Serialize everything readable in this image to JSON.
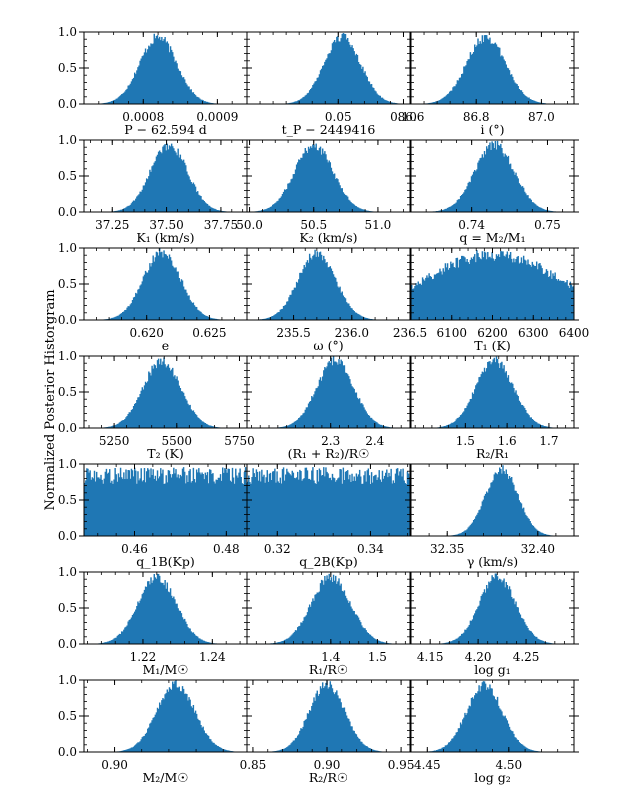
{
  "figure": {
    "ylabel": "Normalized Posterior Historgram",
    "bar_color": "#1f77b4",
    "rows": 7,
    "cols": 3
  },
  "chart_data": [
    {
      "type": "bar",
      "shape": "gaussian",
      "xlabel": "P − 62.594 d",
      "xlim": [
        0.00072,
        0.00094
      ],
      "center": 0.00082,
      "sigma": 2.5e-05,
      "xticks": [
        0.0008,
        0.0009
      ],
      "xtick_labels": [
        "0.0008",
        "0.0009"
      ],
      "yticks": [
        0.0,
        0.5,
        1.0
      ],
      "ytick_labels": [
        "0.0",
        "0.5",
        "1.0"
      ],
      "ylim": [
        0,
        1
      ]
    },
    {
      "type": "bar",
      "shape": "gaussian",
      "xlabel": "t_P − 2449416",
      "xlim": [
        -0.02,
        0.105
      ],
      "center": 0.053,
      "sigma": 0.014,
      "xticks": [
        0.05,
        0.1
      ],
      "xtick_labels": [
        "0.05",
        "0.10"
      ],
      "yticks": [
        0.0,
        0.5,
        1.0
      ],
      "ytick_labels": [
        "",
        "",
        ""
      ],
      "ylim": [
        0,
        1
      ]
    },
    {
      "type": "bar",
      "shape": "gaussian",
      "xlabel": "i (°)",
      "xlim": [
        86.6,
        87.1
      ],
      "center": 86.83,
      "sigma": 0.06,
      "xticks": [
        86.6,
        86.8,
        87.0
      ],
      "xtick_labels": [
        "86.6",
        "86.8",
        "87.0"
      ],
      "yticks": [
        0.0,
        0.5,
        1.0
      ],
      "ytick_labels": [
        "",
        "",
        ""
      ],
      "ylim": [
        0,
        1
      ]
    },
    {
      "type": "bar",
      "shape": "gaussian",
      "xlabel": "K₁ (km/s)",
      "xlim": [
        37.12,
        37.87
      ],
      "center": 37.51,
      "sigma": 0.085,
      "xticks": [
        37.25,
        37.5,
        37.75
      ],
      "xtick_labels": [
        "37.25",
        "37.50",
        "37.75"
      ],
      "yticks": [
        0.0,
        0.5,
        1.0
      ],
      "ytick_labels": [
        "0.0",
        "0.5",
        "1.0"
      ],
      "ylim": [
        0,
        1
      ]
    },
    {
      "type": "bar",
      "shape": "gaussian",
      "xlabel": "K₂ (km/s)",
      "xlim": [
        49.98,
        51.25
      ],
      "center": 50.5,
      "sigma": 0.15,
      "xticks": [
        50.0,
        50.5,
        51.0
      ],
      "xtick_labels": [
        "50.0",
        "50.5",
        "51.0"
      ],
      "yticks": [
        0.0,
        0.5,
        1.0
      ],
      "ytick_labels": [
        "",
        "",
        ""
      ],
      "ylim": [
        0,
        1
      ]
    },
    {
      "type": "bar",
      "shape": "gaussian",
      "xlabel": "q = M₂/M₁",
      "xlim": [
        0.732,
        0.7535
      ],
      "center": 0.743,
      "sigma": 0.0026,
      "xticks": [
        0.74,
        0.75
      ],
      "xtick_labels": [
        "0.74",
        "0.75"
      ],
      "yticks": [
        0.0,
        0.5,
        1.0
      ],
      "ytick_labels": [
        "",
        "",
        ""
      ],
      "ylim": [
        0,
        1
      ]
    },
    {
      "type": "bar",
      "shape": "gaussian",
      "xlabel": "e",
      "xlim": [
        0.615,
        0.628
      ],
      "center": 0.6212,
      "sigma": 0.0015,
      "xticks": [
        0.62,
        0.625
      ],
      "xtick_labels": [
        "0.620",
        "0.625"
      ],
      "yticks": [
        0.0,
        0.5,
        1.0
      ],
      "ytick_labels": [
        "0.0",
        "0.5",
        "1.0"
      ],
      "ylim": [
        0,
        1
      ]
    },
    {
      "type": "bar",
      "shape": "gaussian",
      "xlabel": "ω (°)",
      "xlim": [
        235.1,
        236.5
      ],
      "center": 235.7,
      "sigma": 0.16,
      "xticks": [
        235.5,
        236.0,
        236.5
      ],
      "xtick_labels": [
        "235.5",
        "236.0",
        "236.5"
      ],
      "yticks": [
        0.0,
        0.5,
        1.0
      ],
      "ytick_labels": [
        "",
        "",
        ""
      ],
      "ylim": [
        0,
        1
      ]
    },
    {
      "type": "bar",
      "shape": "broad",
      "xlabel": "T₁ (K)",
      "xlim": [
        6000,
        6400
      ],
      "center": 6200,
      "sigma": 170,
      "xticks": [
        6100,
        6200,
        6300,
        6400
      ],
      "xtick_labels": [
        "6100",
        "6200",
        "6300",
        "6400"
      ],
      "yticks": [
        0.0,
        0.5,
        1.0
      ],
      "ytick_labels": [
        "",
        "",
        ""
      ],
      "ylim": [
        0,
        1
      ]
    },
    {
      "type": "bar",
      "shape": "gaussian",
      "xlabel": "T₂ (K)",
      "xlim": [
        5130,
        5780
      ],
      "center": 5440,
      "sigma": 75,
      "xticks": [
        5250,
        5500,
        5750
      ],
      "xtick_labels": [
        "5250",
        "5500",
        "5750"
      ],
      "yticks": [
        0.0,
        0.5,
        1.0
      ],
      "ytick_labels": [
        "0.0",
        "0.5",
        "1.0"
      ],
      "ylim": [
        0,
        1
      ]
    },
    {
      "type": "bar",
      "shape": "gaussian",
      "xlabel": "(R₁ + R₂)/R☉",
      "xlim": [
        2.11,
        2.48
      ],
      "center": 2.31,
      "sigma": 0.042,
      "xticks": [
        2.3,
        2.4
      ],
      "xtick_labels": [
        "2.3",
        "2.4"
      ],
      "yticks": [
        0.0,
        0.5,
        1.0
      ],
      "ytick_labels": [
        "",
        "",
        ""
      ],
      "ylim": [
        0,
        1
      ]
    },
    {
      "type": "bar",
      "shape": "gaussian",
      "xlabel": "R₂/R₁",
      "xlim": [
        1.37,
        1.76
      ],
      "center": 1.57,
      "sigma": 0.045,
      "xticks": [
        1.5,
        1.6,
        1.7
      ],
      "xtick_labels": [
        "1.5",
        "1.6",
        "1.7"
      ],
      "yticks": [
        0.0,
        0.5,
        1.0
      ],
      "ytick_labels": [
        "",
        "",
        ""
      ],
      "ylim": [
        0,
        1
      ]
    },
    {
      "type": "bar",
      "shape": "uniform",
      "xlabel": "q_1B(Kp)",
      "xlim": [
        0.449,
        0.4845
      ],
      "center": 0.4667,
      "sigma": 0,
      "xticks": [
        0.46,
        0.48
      ],
      "xtick_labels": [
        "0.46",
        "0.48"
      ],
      "yticks": [
        0.0,
        0.5,
        1.0
      ],
      "ytick_labels": [
        "0.0",
        "0.5",
        "1.0"
      ],
      "ylim": [
        0,
        1
      ]
    },
    {
      "type": "bar",
      "shape": "uniform",
      "xlabel": "q_2B(Kp)",
      "xlim": [
        0.3135,
        0.3485
      ],
      "center": 0.331,
      "sigma": 0,
      "xticks": [
        0.32,
        0.34
      ],
      "xtick_labels": [
        "0.32",
        "0.34"
      ],
      "yticks": [
        0.0,
        0.5,
        1.0
      ],
      "ytick_labels": [
        "",
        "",
        ""
      ],
      "ylim": [
        0,
        1
      ]
    },
    {
      "type": "bar",
      "shape": "gaussian",
      "xlabel": "γ (km/s)",
      "xlim": [
        32.33,
        32.42
      ],
      "center": 32.38,
      "sigma": 0.009,
      "xticks": [
        32.35,
        32.4
      ],
      "xtick_labels": [
        "32.35",
        "32.40"
      ],
      "yticks": [
        0.0,
        0.5,
        1.0
      ],
      "ytick_labels": [
        "",
        "",
        ""
      ],
      "ylim": [
        0,
        1
      ]
    },
    {
      "type": "bar",
      "shape": "gaussian",
      "xlabel": "M₁/M☉",
      "xlim": [
        1.203,
        1.25
      ],
      "center": 1.224,
      "sigma": 0.0055,
      "xticks": [
        1.22,
        1.24
      ],
      "xtick_labels": [
        "1.22",
        "1.24"
      ],
      "yticks": [
        0.0,
        0.5,
        1.0
      ],
      "ytick_labels": [
        "0.0",
        "0.5",
        "1.0"
      ],
      "ylim": [
        0,
        1
      ]
    },
    {
      "type": "bar",
      "shape": "gaussian",
      "xlabel": "R₁/R☉",
      "xlim": [
        1.22,
        1.57
      ],
      "center": 1.4,
      "sigma": 0.042,
      "xticks": [
        1.4,
        1.5
      ],
      "xtick_labels": [
        "1.4",
        "1.5"
      ],
      "yticks": [
        0.0,
        0.5,
        1.0
      ],
      "ytick_labels": [
        "",
        "",
        ""
      ],
      "ylim": [
        0,
        1
      ]
    },
    {
      "type": "bar",
      "shape": "gaussian",
      "xlabel": "log g₁",
      "xlim": [
        4.13,
        4.3
      ],
      "center": 4.22,
      "sigma": 0.019,
      "xticks": [
        4.15,
        4.2,
        4.25
      ],
      "xtick_labels": [
        "4.15",
        "4.20",
        "4.25"
      ],
      "yticks": [
        0.0,
        0.5,
        1.0
      ],
      "ytick_labels": [
        "",
        "",
        ""
      ],
      "ylim": [
        0,
        1
      ]
    },
    {
      "type": "bar",
      "shape": "gaussian",
      "xlabel": "M₂/M☉",
      "xlim": [
        0.8955,
        0.9195
      ],
      "center": 0.909,
      "sigma": 0.0028,
      "xticks": [
        0.9,
        0.92
      ],
      "xtick_labels": [
        "0.90",
        "0.92"
      ],
      "yticks": [
        0.0,
        0.5,
        1.0
      ],
      "ytick_labels": [
        "0.0",
        "0.5",
        "1.0"
      ],
      "ylim": [
        0,
        1
      ]
    },
    {
      "type": "bar",
      "shape": "gaussian",
      "xlabel": "R₂/R☉",
      "xlim": [
        0.846,
        0.956
      ],
      "center": 0.9,
      "sigma": 0.012,
      "xticks": [
        0.85,
        0.9,
        0.95
      ],
      "xtick_labels": [
        "0.85",
        "0.90",
        "0.95"
      ],
      "yticks": [
        0.0,
        0.5,
        1.0
      ],
      "ytick_labels": [
        "",
        "",
        ""
      ],
      "ylim": [
        0,
        1
      ]
    },
    {
      "type": "bar",
      "shape": "gaussian",
      "xlabel": "log g₂",
      "xlim": [
        4.44,
        4.54
      ],
      "center": 4.485,
      "sigma": 0.011,
      "xticks": [
        4.45,
        4.5
      ],
      "xtick_labels": [
        "4.45",
        "4.50"
      ],
      "yticks": [
        0.0,
        0.5,
        1.0
      ],
      "ytick_labels": [
        "",
        "",
        ""
      ],
      "ylim": [
        0,
        1
      ]
    }
  ]
}
